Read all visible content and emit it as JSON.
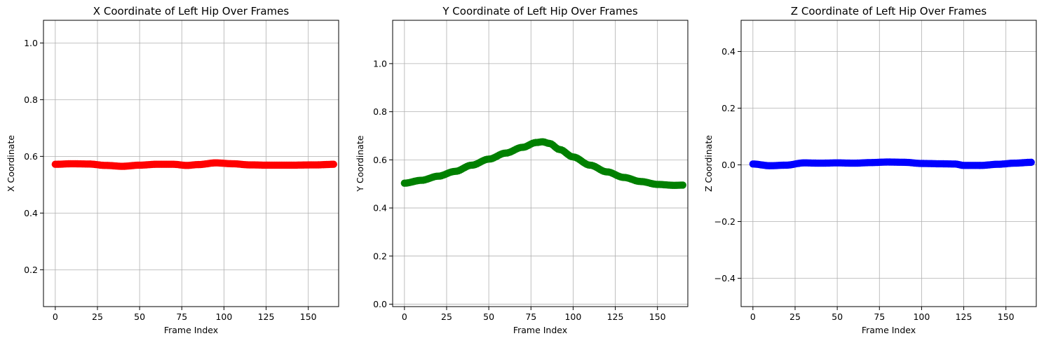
{
  "chart_data": [
    {
      "type": "scatter",
      "title": "X Coordinate of Left Hip Over Frames",
      "xlabel": "Frame Index",
      "ylabel": "X Coordinate",
      "xlim": [
        -7,
        168
      ],
      "ylim": [
        0.07,
        1.08
      ],
      "xticks": [
        0,
        25,
        50,
        75,
        100,
        125,
        150
      ],
      "xtick_labels": [
        "0",
        "25",
        "50",
        "75",
        "100",
        "125",
        "150"
      ],
      "yticks": [
        0.2,
        0.4,
        0.6,
        0.8,
        1.0
      ],
      "ytick_labels": [
        "0.2",
        "0.4",
        "0.6",
        "0.8",
        "1.0"
      ],
      "grid": true,
      "color": "#ff0000",
      "knots": [
        [
          0,
          0.572
        ],
        [
          10,
          0.574
        ],
        [
          20,
          0.573
        ],
        [
          30,
          0.568
        ],
        [
          40,
          0.565
        ],
        [
          50,
          0.569
        ],
        [
          60,
          0.572
        ],
        [
          70,
          0.572
        ],
        [
          78,
          0.568
        ],
        [
          85,
          0.571
        ],
        [
          95,
          0.577
        ],
        [
          105,
          0.574
        ],
        [
          115,
          0.57
        ],
        [
          125,
          0.569
        ],
        [
          140,
          0.569
        ],
        [
          155,
          0.57
        ],
        [
          165,
          0.572
        ]
      ],
      "n_points": 166
    },
    {
      "type": "scatter",
      "title": "Y Coordinate of Left Hip Over Frames",
      "xlabel": "Frame Index",
      "ylabel": "Y Coordinate",
      "xlim": [
        -7,
        168
      ],
      "ylim": [
        -0.01,
        1.18
      ],
      "xticks": [
        0,
        25,
        50,
        75,
        100,
        125,
        150
      ],
      "xtick_labels": [
        "0",
        "25",
        "50",
        "75",
        "100",
        "125",
        "150"
      ],
      "yticks": [
        0.0,
        0.2,
        0.4,
        0.6,
        0.8,
        1.0
      ],
      "ytick_labels": [
        "0.0",
        "0.2",
        "0.4",
        "0.6",
        "0.8",
        "1.0"
      ],
      "grid": true,
      "color": "#008000",
      "knots": [
        [
          0,
          0.503
        ],
        [
          10,
          0.515
        ],
        [
          20,
          0.532
        ],
        [
          30,
          0.552
        ],
        [
          40,
          0.578
        ],
        [
          50,
          0.603
        ],
        [
          60,
          0.628
        ],
        [
          70,
          0.652
        ],
        [
          78,
          0.672
        ],
        [
          82,
          0.675
        ],
        [
          86,
          0.668
        ],
        [
          92,
          0.643
        ],
        [
          100,
          0.612
        ],
        [
          110,
          0.578
        ],
        [
          120,
          0.55
        ],
        [
          130,
          0.527
        ],
        [
          140,
          0.51
        ],
        [
          150,
          0.498
        ],
        [
          160,
          0.494
        ],
        [
          165,
          0.495
        ]
      ],
      "n_points": 166
    },
    {
      "type": "scatter",
      "title": "Z Coordinate of Left Hip Over Frames",
      "xlabel": "Frame Index",
      "ylabel": "Z Coordinate",
      "xlim": [
        -7,
        168
      ],
      "ylim": [
        -0.5,
        0.51
      ],
      "xticks": [
        0,
        25,
        50,
        75,
        100,
        125,
        150
      ],
      "xtick_labels": [
        "0",
        "25",
        "50",
        "75",
        "100",
        "125",
        "150"
      ],
      "yticks": [
        -0.4,
        -0.2,
        0.0,
        0.2,
        0.4
      ],
      "ytick_labels": [
        "−0.4",
        "−0.2",
        "0.0",
        "0.2",
        "0.4"
      ],
      "grid": true,
      "color": "#0000ff",
      "knots": [
        [
          0,
          0.003
        ],
        [
          10,
          -0.003
        ],
        [
          20,
          -0.001
        ],
        [
          30,
          0.007
        ],
        [
          40,
          0.006
        ],
        [
          50,
          0.007
        ],
        [
          60,
          0.006
        ],
        [
          70,
          0.008
        ],
        [
          80,
          0.01
        ],
        [
          90,
          0.009
        ],
        [
          100,
          0.005
        ],
        [
          110,
          0.004
        ],
        [
          120,
          0.003
        ],
        [
          125,
          -0.002
        ],
        [
          135,
          -0.002
        ],
        [
          145,
          0.002
        ],
        [
          155,
          0.006
        ],
        [
          165,
          0.009
        ]
      ],
      "n_points": 166
    }
  ]
}
